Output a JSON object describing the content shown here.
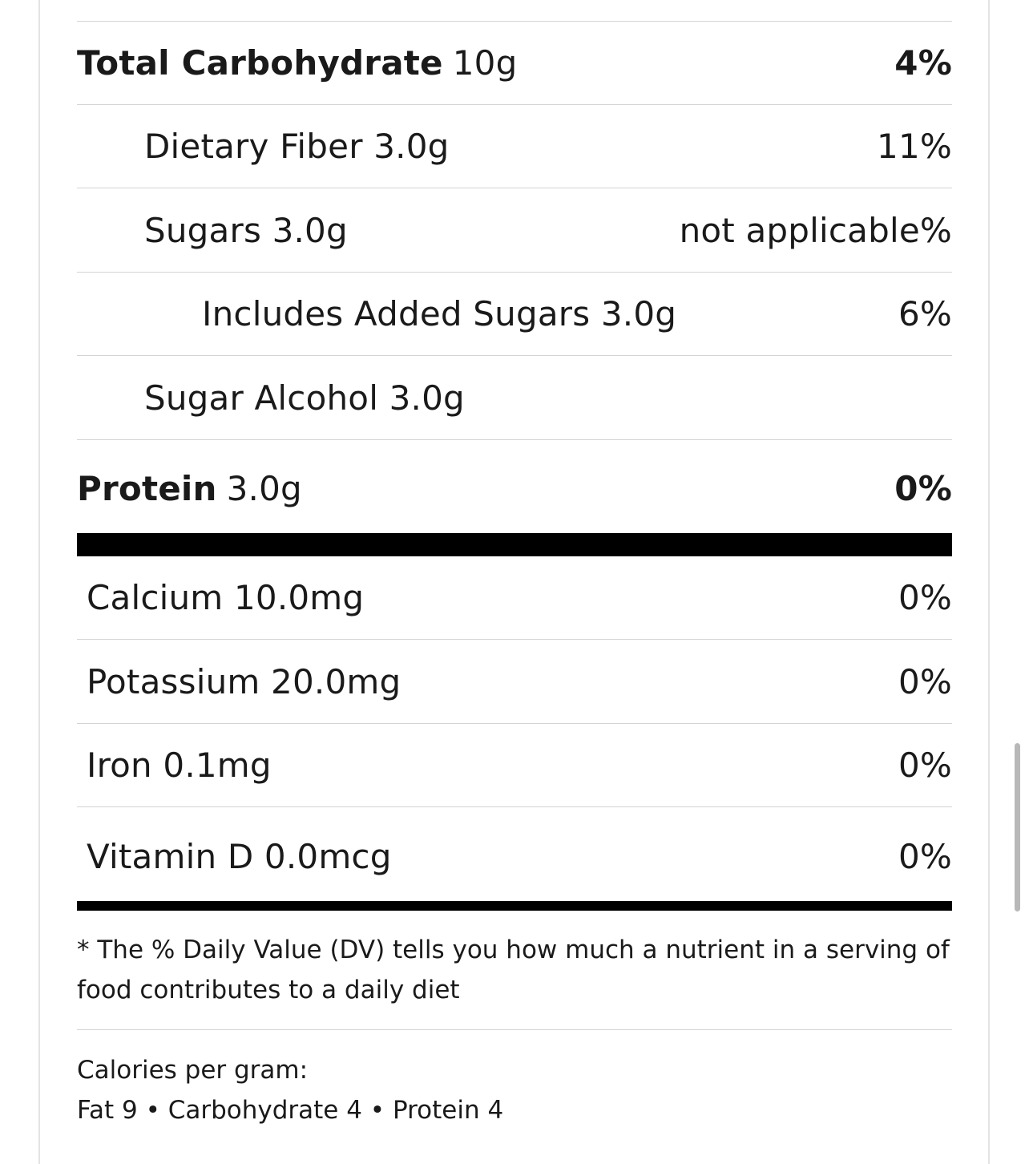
{
  "nutrients": {
    "total_carbohydrate": {
      "name": "Total Carbohydrate",
      "amount": "10g",
      "dv": "4%"
    },
    "dietary_fiber": {
      "name": "Dietary Fiber 3.0g",
      "dv": "11%"
    },
    "sugars": {
      "name": "Sugars 3.0g",
      "dv": "not applicable%"
    },
    "added_sugars": {
      "name": "Includes Added Sugars 3.0g",
      "dv": "6%"
    },
    "sugar_alcohol": {
      "name": "Sugar Alcohol 3.0g",
      "dv": ""
    },
    "protein": {
      "name": "Protein",
      "amount": "3.0g",
      "dv": "0%"
    }
  },
  "vitamins": {
    "calcium": {
      "name": "Calcium 10.0mg",
      "dv": "0%"
    },
    "potassium": {
      "name": "Potassium 20.0mg",
      "dv": "0%"
    },
    "iron": {
      "name": "Iron 0.1mg",
      "dv": "0%"
    },
    "vitamin_d": {
      "name": "Vitamin D 0.0mcg",
      "dv": "0%"
    }
  },
  "footnote": "* The % Daily Value (DV) tells you how much a nutrient in a serving of food contributes to a daily diet",
  "calories_per_gram": {
    "heading": "Calories per gram:",
    "values": "Fat 9 • Carbohydrate 4 • Protein 4"
  }
}
